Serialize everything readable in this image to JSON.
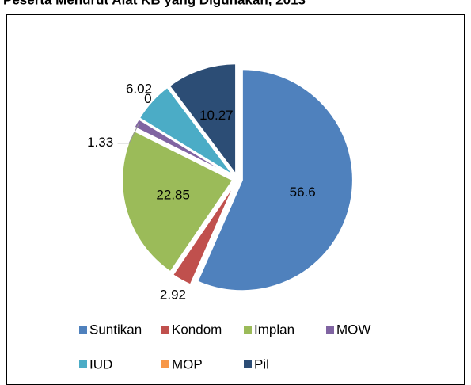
{
  "chart_data": {
    "type": "pie",
    "title": "Peserta Menurut Alat KB yang Digunakan, 2013",
    "categories": [
      "Suntikan",
      "Kondom",
      "Implan",
      "MOW",
      "IUD",
      "MOP",
      "Pil"
    ],
    "values": [
      56.6,
      2.92,
      22.85,
      1.33,
      6.02,
      0,
      10.27
    ],
    "colors": [
      "#4f81bd",
      "#c0504d",
      "#9bbb59",
      "#8064a2",
      "#4bacc6",
      "#f79646",
      "#2c4d75"
    ],
    "legend": "bottom"
  }
}
